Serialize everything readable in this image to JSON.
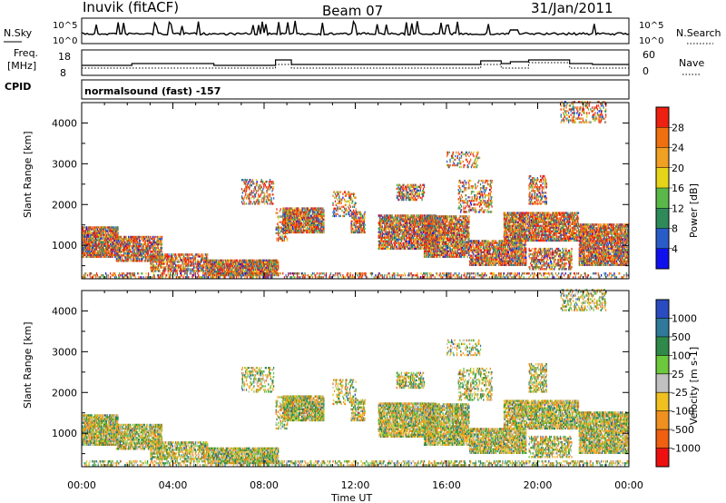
{
  "header": {
    "station": "Inuvik (fitACF)",
    "beam": "Beam 07",
    "date": "31/Jan/2011"
  },
  "panels": {
    "nsky": {
      "left_label": "N.Sky",
      "right_label": "N.Search",
      "left_ticks": [
        "10^5",
        "10^0"
      ],
      "right_ticks": [
        "10^5",
        "10^0"
      ]
    },
    "freq": {
      "left_label_1": "Freq.",
      "left_label_2": "[MHz]",
      "right_label": "Nave",
      "left_ticks": [
        "18",
        "8"
      ],
      "right_ticks": [
        "60",
        "0"
      ]
    },
    "cpid": {
      "label": "CPID",
      "text": "normalsound (fast) -157"
    }
  },
  "chart_data": [
    {
      "type": "heatmap",
      "name": "power",
      "ylabel": "Slant Range [km]",
      "ylim": [
        180,
        4500
      ],
      "yticks": [
        1000,
        2000,
        3000,
        4000
      ],
      "colorbar_label": "Power [dB]",
      "colorbar_ticks": [
        "4",
        "8",
        "12",
        "16",
        "20",
        "24",
        "28"
      ],
      "colorbar_colors": [
        "#1010ee",
        "#2a5cc8",
        "#2f8a5a",
        "#5ab848",
        "#e6d418",
        "#f0a022",
        "#f07010",
        "#ee2010"
      ],
      "xlim_hours": [
        0,
        24
      ]
    },
    {
      "type": "heatmap",
      "name": "velocity",
      "ylabel": "Slant Range [km]",
      "ylim": [
        180,
        4500
      ],
      "yticks": [
        1000,
        2000,
        3000,
        4000
      ],
      "colorbar_label": "Velocity [m s-1]",
      "colorbar_ticks": [
        "1000",
        "500",
        "100",
        "25",
        "-25",
        "-100",
        "-500",
        "-1000"
      ],
      "colorbar_colors": [
        "#2a4cc0",
        "#2f7a9a",
        "#2f8a4a",
        "#6cc83c",
        "#c0c0c0",
        "#f0c020",
        "#f09020",
        "#f06010",
        "#ee1010"
      ],
      "xlabel": "Time UT",
      "xticks": [
        "00:00",
        "04:00",
        "08:00",
        "12:00",
        "16:00",
        "20:00",
        "00:00"
      ],
      "xlim_hours": [
        0,
        24
      ]
    }
  ]
}
